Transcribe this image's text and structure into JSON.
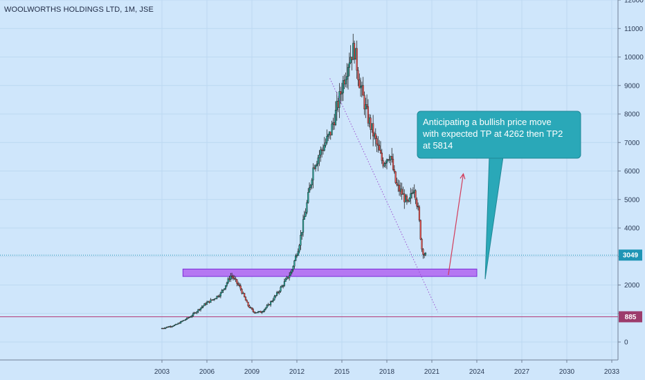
{
  "header": {
    "title": "WOOLWORTHS HOLDINGS LTD, 1M, JSE"
  },
  "chart_data": {
    "type": "candlestick",
    "title": "WOOLWORTHS HOLDINGS LTD, 1M, JSE",
    "xlabel": "",
    "ylabel": "",
    "x_ticks": [
      "2003",
      "2006",
      "2009",
      "2012",
      "2015",
      "2018",
      "2021",
      "2024",
      "2027",
      "2030",
      "2033"
    ],
    "y_ticks": [
      0,
      1000,
      2000,
      3000,
      4000,
      5000,
      6000,
      7000,
      8000,
      9000,
      10000,
      11000,
      12000
    ],
    "xlim": [
      2003,
      2033
    ],
    "ylim": [
      -600,
      12100
    ],
    "grid": true,
    "price_path": [
      [
        2003.0,
        470
      ],
      [
        2004.0,
        600
      ],
      [
        2005.0,
        900
      ],
      [
        2006.0,
        1350
      ],
      [
        2006.5,
        1500
      ],
      [
        2007.0,
        1700
      ],
      [
        2007.7,
        2350
      ],
      [
        2008.3,
        1900
      ],
      [
        2008.8,
        1300
      ],
      [
        2009.2,
        1050
      ],
      [
        2009.7,
        1050
      ],
      [
        2010.2,
        1300
      ],
      [
        2010.7,
        1650
      ],
      [
        2011.2,
        2050
      ],
      [
        2011.7,
        2450
      ],
      [
        2012.2,
        3350
      ],
      [
        2012.7,
        4700
      ],
      [
        2013.2,
        6200
      ],
      [
        2013.8,
        6800
      ],
      [
        2014.3,
        7300
      ],
      [
        2014.8,
        8300
      ],
      [
        2015.2,
        9200
      ],
      [
        2015.6,
        10000
      ],
      [
        2015.9,
        10300
      ],
      [
        2016.3,
        9000
      ],
      [
        2016.8,
        7900
      ],
      [
        2017.3,
        7100
      ],
      [
        2017.8,
        6300
      ],
      [
        2018.3,
        6600
      ],
      [
        2018.7,
        5500
      ],
      [
        2019.1,
        5200
      ],
      [
        2019.5,
        4800
      ],
      [
        2019.9,
        5500
      ],
      [
        2020.2,
        4500
      ],
      [
        2020.4,
        3300
      ],
      [
        2020.6,
        3049
      ]
    ],
    "current_price": 3049,
    "horizontal_line": {
      "value": 885,
      "color": "#b43a78"
    },
    "support_zone": {
      "from": 2004.4,
      "to": 2024.0,
      "low": 2300,
      "high": 2560,
      "color": "#b577f2"
    },
    "trendline": {
      "x1": 2014.2,
      "y1": 9250,
      "x2": 2021.4,
      "y2": 1050
    },
    "arrow": {
      "x1": 2022.1,
      "y1": 2350,
      "x2": 2023.1,
      "y2": 5900,
      "color": "#d23b5a"
    },
    "badges": [
      {
        "value": "3049",
        "color": "#1f95b5"
      },
      {
        "value": "885",
        "color": "#9c3c6c"
      }
    ],
    "callout": {
      "text_lines": [
        "Anticipating a bullish price move",
        "with expected TP at 4262 then TP2",
        "at 5814"
      ],
      "color": "#2aa8b8"
    },
    "colors": {
      "up": "#26a69a",
      "down": "#ef5350",
      "wick": "#222222",
      "background": "#cfe6fb"
    }
  }
}
